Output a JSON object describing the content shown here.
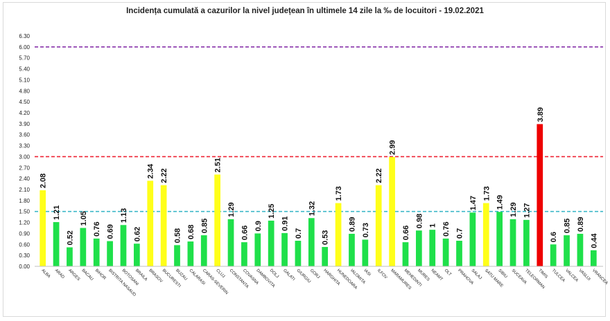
{
  "chart_data": {
    "type": "bar",
    "title": "Incidența cumulată a cazurilor la nivel județean în ultimele 14 zile la ‰ de locuitori - 19.02.2021",
    "xlabel": "",
    "ylabel": "",
    "ylim": [
      0,
      6.3
    ],
    "yticks": [
      "0.00",
      "0.30",
      "0.60",
      "0.90",
      "1.20",
      "1.50",
      "1.80",
      "2.10",
      "2.40",
      "2.70",
      "3.00",
      "3.30",
      "3.60",
      "3.90",
      "4.20",
      "4.50",
      "4.80",
      "5.10",
      "5.40",
      "5.70",
      "6.00",
      "6.30"
    ],
    "grid": false,
    "legend": "none",
    "categories": [
      "ALBA",
      "ARAD",
      "ARGES",
      "BACAU",
      "BIHOR",
      "BISTRITA NASAUD",
      "BOTOSANI",
      "BRAILA",
      "BRASOV",
      "BUCURESTI",
      "BUZAU",
      "CALARASI",
      "CARAS-SEVERIN",
      "CLUJ",
      "CONSTANTA",
      "COVASNA",
      "DAMBOVITA",
      "DOLJ",
      "GALATI",
      "GIURGIU",
      "GORJ",
      "HARGHITA",
      "HUNEDOARA",
      "IALOMITA",
      "IASI",
      "ILFOV",
      "MARAMURES",
      "MEHEDINTI",
      "MURES",
      "NEAMT",
      "OLT",
      "PRAHOVA",
      "SALAJ",
      "SATU MARE",
      "SIBIU",
      "SUCEAVA",
      "TELEORMAN",
      "TIMIS",
      "TULCEA",
      "VALCEA",
      "VASLUI",
      "VRANCEA"
    ],
    "values": [
      2.08,
      1.21,
      0.52,
      1.05,
      0.76,
      0.69,
      1.13,
      0.62,
      2.34,
      2.22,
      0.58,
      0.68,
      0.85,
      2.51,
      1.29,
      0.66,
      0.9,
      1.25,
      0.91,
      0.7,
      1.32,
      0.53,
      1.73,
      0.89,
      0.73,
      2.22,
      2.99,
      0.66,
      0.98,
      1,
      0.76,
      0.7,
      1.47,
      1.73,
      1.49,
      1.29,
      1.27,
      3.89,
      0.6,
      0.85,
      0.89,
      0.44
    ],
    "value_labels": [
      "2.08",
      "1.21",
      "0.52",
      "1.05",
      "0.76",
      "0.69",
      "1.13",
      "0.62",
      "2.34",
      "2.22",
      "0.58",
      "0.68",
      "0.85",
      "2.51",
      "1.29",
      "0.66",
      "0.9",
      "1.25",
      "0.91",
      "0.7",
      "1.32",
      "0.53",
      "1.73",
      "0.89",
      "0.73",
      "2.22",
      "2.99",
      "0.66",
      "0.98",
      "1",
      "0.76",
      "0.7",
      "1.47",
      "1.73",
      "1.49",
      "1.29",
      "1.27",
      "3.89",
      "0.6",
      "0.85",
      "0.89",
      "0.44"
    ],
    "bar_colors": [
      "yellow",
      "green",
      "green",
      "green",
      "green",
      "green",
      "green",
      "green",
      "yellow",
      "yellow",
      "green",
      "green",
      "green",
      "yellow",
      "green",
      "green",
      "green",
      "green",
      "green",
      "green",
      "green",
      "green",
      "yellow",
      "green",
      "green",
      "yellow",
      "yellow",
      "green",
      "green",
      "green",
      "green",
      "green",
      "green",
      "yellow",
      "green",
      "green",
      "green",
      "red",
      "green",
      "green",
      "green",
      "green"
    ],
    "colors": {
      "green": "#1fe04a",
      "yellow": "#ffff1a",
      "red": "#ee0000"
    },
    "thresholds": [
      {
        "value": 1.5,
        "color": "#3cb8c8"
      },
      {
        "value": 3.0,
        "color": "#ee2233"
      },
      {
        "value": 6.0,
        "color": "#8833aa"
      }
    ]
  }
}
